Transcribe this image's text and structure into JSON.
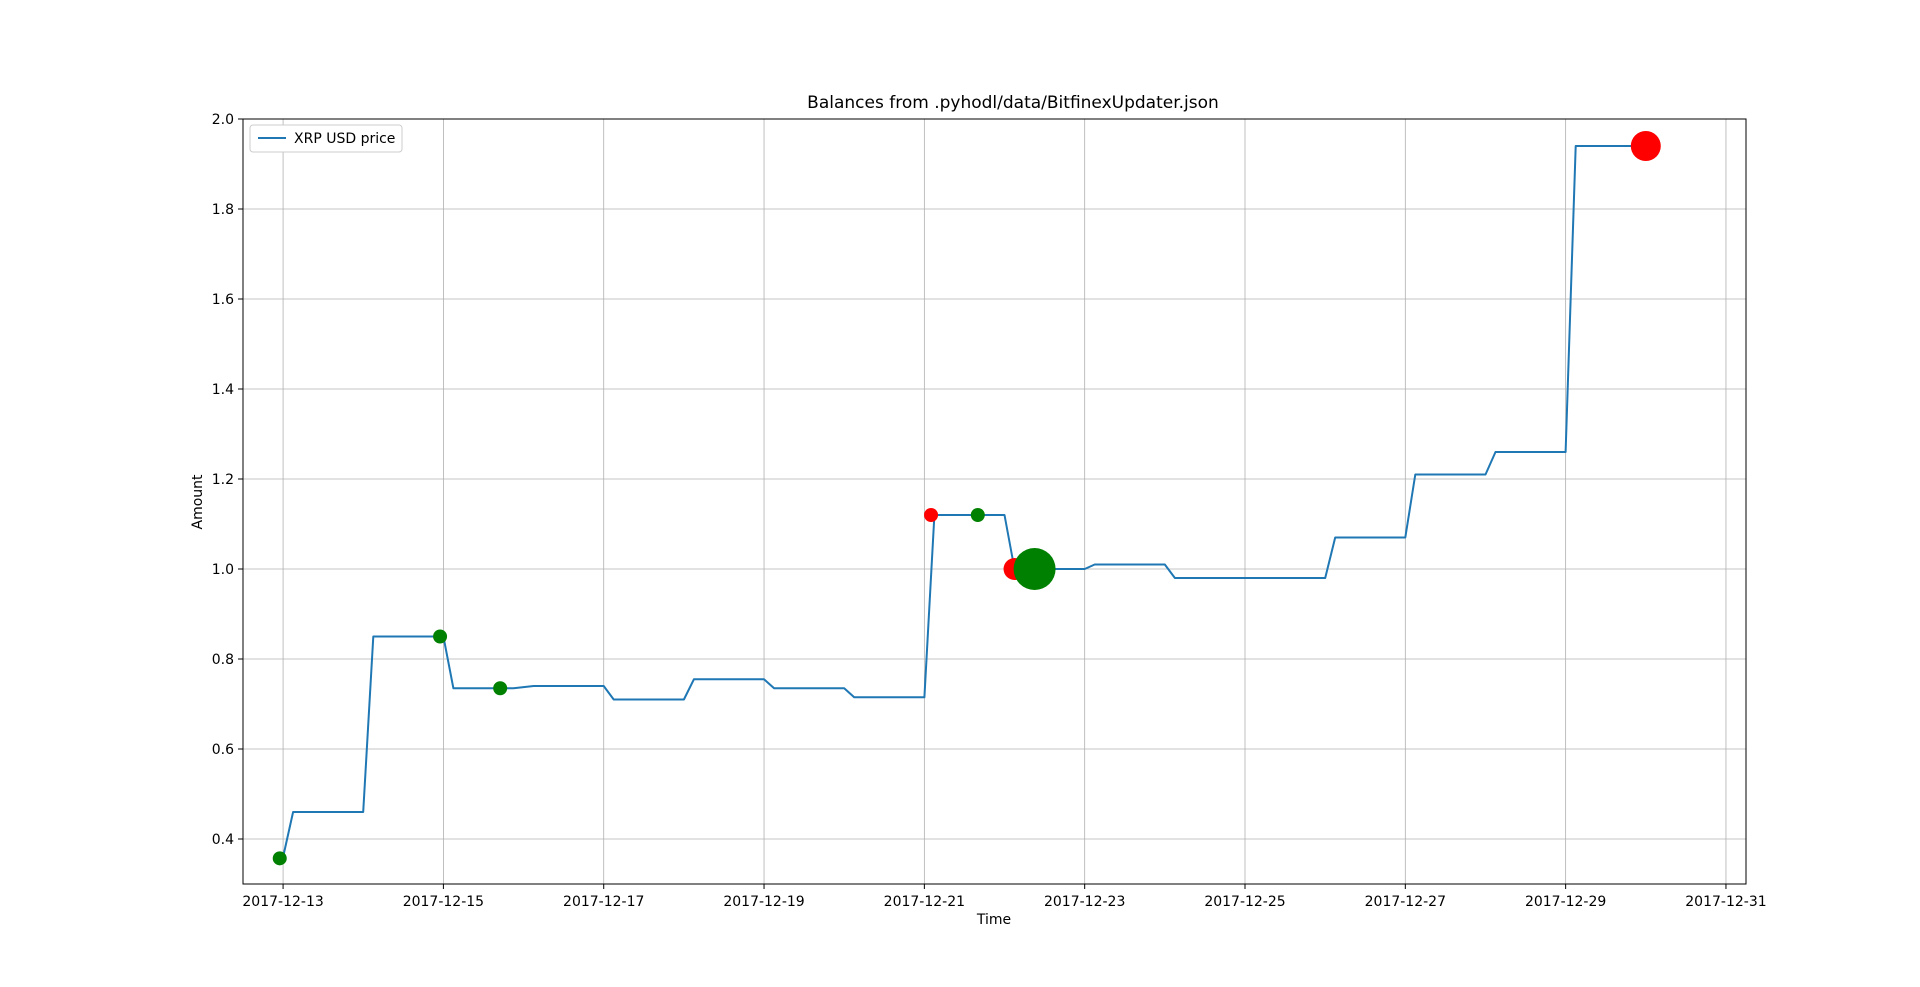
{
  "chart_data": {
    "type": "line",
    "title": "Balances from .pyhodl/data/BitfinexUpdater.json",
    "xlabel": "Time",
    "ylabel": "Amount",
    "x_is_date": true,
    "xlim": [
      "2017-12-12T12:00",
      "2017-12-31T06:00"
    ],
    "ylim": [
      0.3,
      2.0
    ],
    "x_ticks": [
      "2017-12-13",
      "2017-12-15",
      "2017-12-17",
      "2017-12-19",
      "2017-12-21",
      "2017-12-23",
      "2017-12-25",
      "2017-12-27",
      "2017-12-29",
      "2017-12-31"
    ],
    "y_ticks": [
      0.4,
      0.6,
      0.8,
      1.0,
      1.2,
      1.4,
      1.6,
      1.8,
      2.0
    ],
    "y_tick_labels": [
      "0.4",
      "0.6",
      "0.8",
      "1.0",
      "1.2",
      "1.4",
      "1.6",
      "1.8",
      "2.0"
    ],
    "grid": true,
    "legend_position": "upper-left",
    "series": [
      {
        "name": "XRP USD price",
        "color": "#1f77b4",
        "points": [
          [
            "2017-12-13T00:00",
            0.36
          ],
          [
            "2017-12-13T03:00",
            0.46
          ],
          [
            "2017-12-14T00:00",
            0.46
          ],
          [
            "2017-12-14T03:00",
            0.85
          ],
          [
            "2017-12-15T00:00",
            0.85
          ],
          [
            "2017-12-15T03:00",
            0.735
          ],
          [
            "2017-12-15T21:00",
            0.735
          ],
          [
            "2017-12-16T03:00",
            0.74
          ],
          [
            "2017-12-17T00:00",
            0.74
          ],
          [
            "2017-12-17T03:00",
            0.71
          ],
          [
            "2017-12-18T00:00",
            0.71
          ],
          [
            "2017-12-18T03:00",
            0.755
          ],
          [
            "2017-12-19T00:00",
            0.755
          ],
          [
            "2017-12-19T03:00",
            0.735
          ],
          [
            "2017-12-20T00:00",
            0.735
          ],
          [
            "2017-12-20T03:00",
            0.715
          ],
          [
            "2017-12-21T00:00",
            0.715
          ],
          [
            "2017-12-21T03:00",
            1.12
          ],
          [
            "2017-12-22T00:00",
            1.12
          ],
          [
            "2017-12-22T03:00",
            1.0
          ],
          [
            "2017-12-23T00:00",
            1.0
          ],
          [
            "2017-12-23T03:00",
            1.01
          ],
          [
            "2017-12-24T00:00",
            1.01
          ],
          [
            "2017-12-24T03:00",
            0.98
          ],
          [
            "2017-12-26T00:00",
            0.98
          ],
          [
            "2017-12-26T03:00",
            1.07
          ],
          [
            "2017-12-27T00:00",
            1.07
          ],
          [
            "2017-12-27T03:00",
            1.21
          ],
          [
            "2017-12-28T00:00",
            1.21
          ],
          [
            "2017-12-28T03:00",
            1.26
          ],
          [
            "2017-12-29T00:00",
            1.26
          ],
          [
            "2017-12-29T03:00",
            1.94
          ],
          [
            "2017-12-30T00:00",
            1.94
          ]
        ]
      }
    ],
    "markers": [
      {
        "x": "2017-12-12T23:00",
        "y": 0.357,
        "color": "#008000",
        "size": 7
      },
      {
        "x": "2017-12-14T23:00",
        "y": 0.85,
        "color": "#008000",
        "size": 7
      },
      {
        "x": "2017-12-15T17:00",
        "y": 0.735,
        "color": "#008000",
        "size": 7
      },
      {
        "x": "2017-12-21T02:00",
        "y": 1.12,
        "color": "#ff0000",
        "size": 7
      },
      {
        "x": "2017-12-21T16:00",
        "y": 1.12,
        "color": "#008000",
        "size": 7
      },
      {
        "x": "2017-12-22T03:00",
        "y": 1.0,
        "color": "#ff0000",
        "size": 11
      },
      {
        "x": "2017-12-22T09:00",
        "y": 1.0,
        "color": "#008000",
        "size": 21
      },
      {
        "x": "2017-12-30T00:00",
        "y": 1.94,
        "color": "#ff0000",
        "size": 15
      }
    ]
  }
}
